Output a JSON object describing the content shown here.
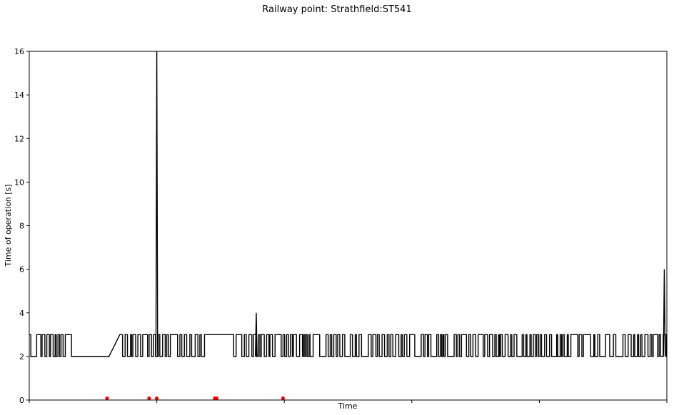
{
  "chart_data": {
    "type": "line",
    "title": "Railway point: Strathfield:ST541",
    "xlabel": "Time",
    "ylabel": "Time of operation [s]",
    "ylim": [
      0,
      16
    ],
    "yticks": [
      0,
      2,
      4,
      6,
      8,
      10,
      12,
      14,
      16
    ],
    "xlim": [
      0,
      1
    ],
    "xticks": [
      0,
      0.2,
      0.4,
      0.6,
      0.8,
      1.0
    ],
    "grid": false,
    "series": [
      {
        "color": "#000000",
        "baseline": 2,
        "high": 3,
        "segments": [
          {
            "x0": 0.0,
            "x1": 0.07,
            "pattern": "toggle",
            "seed": 1
          },
          {
            "x0": 0.07,
            "x1": 0.125,
            "pattern": "flat",
            "value": 2
          },
          {
            "x0": 0.125,
            "x1": 0.142,
            "pattern": "ramp",
            "from": 2,
            "to": 3
          },
          {
            "x0": 0.142,
            "x1": 0.275,
            "pattern": "toggle",
            "seed": 2
          },
          {
            "x0": 0.275,
            "x1": 0.318,
            "pattern": "flat",
            "value": 3
          },
          {
            "x0": 0.318,
            "x1": 1.0,
            "pattern": "toggle",
            "seed": 3
          }
        ],
        "spikes": [
          {
            "x": 0.2,
            "value": 16
          },
          {
            "x": 0.356,
            "value": 4
          },
          {
            "x": 0.996,
            "value": 6
          }
        ]
      }
    ],
    "markers": {
      "color": "#ff0000",
      "y": 0.08,
      "x": [
        0.122,
        0.188,
        0.2,
        0.291,
        0.294,
        0.398
      ]
    }
  }
}
